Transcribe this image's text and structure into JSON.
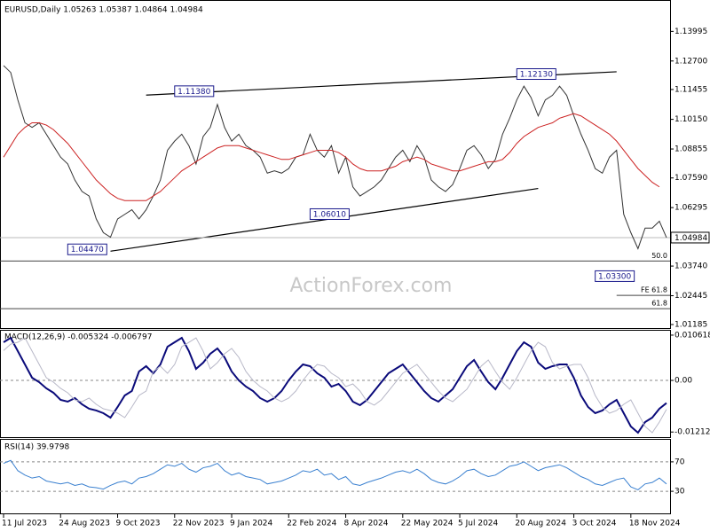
{
  "chart_data": [
    {
      "type": "line",
      "title": "EURUSD,Daily  1.05263 1.05387 1.04864 1.04984",
      "watermark": "ActionForex.com",
      "categories": [
        "11 Jul 2023",
        null,
        null,
        null,
        null,
        null,
        null,
        null,
        "24 Aug 2023",
        null,
        null,
        null,
        null,
        null,
        null,
        null,
        "9 Oct 2023",
        null,
        null,
        null,
        null,
        null,
        null,
        null,
        "22 Nov 2023",
        null,
        null,
        null,
        null,
        null,
        null,
        null,
        "9 Jan 2024",
        null,
        null,
        null,
        null,
        null,
        null,
        null,
        "22 Feb 2024",
        null,
        null,
        null,
        null,
        null,
        null,
        null,
        "8 Apr 2024",
        null,
        null,
        null,
        null,
        null,
        null,
        null,
        "22 May 2024",
        null,
        null,
        null,
        null,
        null,
        null,
        null,
        "5 Jul 2024",
        null,
        null,
        null,
        null,
        null,
        null,
        null,
        "20 Aug 2024",
        null,
        null,
        null,
        null,
        null,
        null,
        null,
        "3 Oct 2024",
        null,
        null,
        null,
        null,
        null,
        null,
        null,
        "18 Nov 2024",
        null,
        null,
        null,
        null,
        null
      ],
      "series": [
        {
          "color": "#333333",
          "values": [
            1.125,
            1.122,
            1.11,
            1.1,
            1.098,
            1.1,
            1.095,
            1.09,
            1.085,
            1.082,
            1.075,
            1.07,
            1.068,
            1.058,
            1.052,
            1.05,
            1.058,
            1.06,
            1.062,
            1.058,
            1.062,
            1.068,
            1.075,
            1.088,
            1.092,
            1.095,
            1.09,
            1.082,
            1.094,
            1.098,
            1.108,
            1.098,
            1.092,
            1.095,
            1.09,
            1.088,
            1.085,
            1.078,
            1.079,
            1.078,
            1.08,
            1.085,
            1.086,
            1.095,
            1.088,
            1.085,
            1.09,
            1.078,
            1.085,
            1.072,
            1.068,
            1.07,
            1.072,
            1.075,
            1.08,
            1.085,
            1.088,
            1.083,
            1.09,
            1.085,
            1.075,
            1.072,
            1.07,
            1.073,
            1.08,
            1.088,
            1.09,
            1.086,
            1.08,
            1.084,
            1.095,
            1.102,
            1.11,
            1.116,
            1.111,
            1.103,
            1.11,
            1.112,
            1.116,
            1.112,
            1.103,
            1.095,
            1.088,
            1.08,
            1.078,
            1.085,
            1.088,
            1.06,
            1.052,
            1.045,
            1.054,
            1.054,
            1.057,
            1.04984
          ]
        },
        {
          "color": "#cc2222",
          "values": [
            1.085,
            1.09,
            1.095,
            1.098,
            1.1,
            1.1,
            1.099,
            1.097,
            1.094,
            1.091,
            1.087,
            1.083,
            1.079,
            1.075,
            1.072,
            1.069,
            1.067,
            1.066,
            1.066,
            1.066,
            1.066,
            1.068,
            1.07,
            1.073,
            1.076,
            1.079,
            1.081,
            1.083,
            1.085,
            1.087,
            1.089,
            1.09,
            1.09,
            1.09,
            1.089,
            1.088,
            1.087,
            1.086,
            1.085,
            1.084,
            1.084,
            1.085,
            1.086,
            1.087,
            1.088,
            1.088,
            1.088,
            1.087,
            1.085,
            1.082,
            1.08,
            1.079,
            1.079,
            1.079,
            1.08,
            1.081,
            1.083,
            1.084,
            1.085,
            1.084,
            1.082,
            1.081,
            1.08,
            1.079,
            1.079,
            1.08,
            1.081,
            1.082,
            1.083,
            1.083,
            1.084,
            1.087,
            1.091,
            1.094,
            1.096,
            1.098,
            1.099,
            1.1,
            1.102,
            1.103,
            1.104,
            1.103,
            1.101,
            1.099,
            1.097,
            1.095,
            1.092,
            1.088,
            1.084,
            1.08,
            1.077,
            1.074,
            1.072,
            null
          ]
        }
      ],
      "ylim": [
        1.0107,
        1.1521
      ],
      "yticks": [
        {
          "value": 1.13995,
          "label": "1.13995"
        },
        {
          "value": 1.127,
          "label": "1.12700"
        },
        {
          "value": 1.11455,
          "label": "1.11455"
        },
        {
          "value": 1.1015,
          "label": "1.10150"
        },
        {
          "value": 1.08855,
          "label": "1.08855"
        },
        {
          "value": 1.0759,
          "label": "1.07590"
        },
        {
          "value": 1.06295,
          "label": "1.06295"
        },
        {
          "value": 1.0374,
          "label": "1.03740"
        },
        {
          "value": 1.02445,
          "label": "1.02445"
        },
        {
          "value": 1.01185,
          "label": "1.01185"
        }
      ],
      "annotations": [
        {
          "index": 24,
          "value": 1.1138,
          "label": "1.11380"
        },
        {
          "index": 43,
          "value": 1.0601,
          "label": "1.06010"
        },
        {
          "index": 9,
          "value": 1.0447,
          "label": "1.04470"
        },
        {
          "index": 72,
          "value": 1.1213,
          "label": "1.12130"
        },
        {
          "index": 83,
          "value": 1.033,
          "label": "1.03300"
        }
      ],
      "levels": [
        {
          "value": 1.0396,
          "label": "50.0",
          "start": 0
        },
        {
          "value": 1.0246,
          "label": "FE 61.8",
          "start": 86
        },
        {
          "value": 1.0188,
          "label": "61.8",
          "start": 0
        }
      ],
      "trendlines": [
        {
          "points": [
            [
              20,
              1.1121
            ],
            [
              86,
              1.1223
            ]
          ]
        },
        {
          "points": [
            [
              15,
              1.0439
            ],
            [
              75,
              1.0713
            ]
          ]
        }
      ]
    },
    {
      "type": "line",
      "title": "MACD(12,26,9) -0.005324 -0.006797",
      "series": [
        {
          "color": "#0a0a7a",
          "values": [
            0.00894,
            0.00998,
            0.00686,
            0.00374,
            0.00062,
            -0.00042,
            -0.00187,
            -0.00291,
            -0.00458,
            -0.00499,
            -0.00416,
            -0.00562,
            -0.00666,
            -0.00707,
            -0.0077,
            -0.00874,
            -0.00624,
            -0.00354,
            -0.0025,
            0.00208,
            0.00333,
            0.00166,
            0.00374,
            0.0079,
            0.00894,
            0.00998,
            0.00686,
            0.0027,
            0.00416,
            0.00624,
            0.00749,
            0.00541,
            0.00208,
            0,
            -0.00146,
            -0.0025,
            -0.00416,
            -0.00499,
            -0.00416,
            -0.0025,
            0,
            0.00208,
            0.00374,
            0.00333,
            0.00166,
            0.00062,
            -0.00146,
            -0.00083,
            -0.0025,
            -0.00499,
            -0.00582,
            -0.00458,
            -0.0025,
            -0.00042,
            0.00166,
            0.0027,
            0.00374,
            0.00166,
            -0.00042,
            -0.0025,
            -0.00416,
            -0.00499,
            -0.00354,
            -0.00208,
            0.00062,
            0.00333,
            0.00478,
            0.00208,
            -0.00042,
            -0.00208,
            0.00062,
            0.00374,
            0.00686,
            0.00894,
            0.0079,
            0.00416,
            0.0027,
            0.00333,
            0.00374,
            0.00374,
            0.00062,
            -0.00354,
            -0.00624,
            -0.0077,
            -0.00707,
            -0.00562,
            -0.00458,
            -0.0077,
            -0.01082,
            -0.01228,
            -0.00978,
            -0.00874,
            -0.00666,
            -0.005324
          ]
        },
        {
          "color": "#b8b8c8",
          "values": [
            0.007,
            0.0085,
            0.00894,
            0.00998,
            0.00686,
            0.00374,
            0.00062,
            -0.00042,
            -0.00187,
            -0.00291,
            -0.00458,
            -0.00499,
            -0.00416,
            -0.00562,
            -0.00666,
            -0.00707,
            -0.0077,
            -0.00874,
            -0.00624,
            -0.00354,
            -0.0025,
            0.00208,
            0.00333,
            0.00166,
            0.00374,
            0.0079,
            0.00894,
            0.00998,
            0.00686,
            0.0027,
            0.00416,
            0.00624,
            0.00749,
            0.00541,
            0.00208,
            0,
            -0.00146,
            -0.0025,
            -0.00416,
            -0.00499,
            -0.00416,
            -0.0025,
            0,
            0.00208,
            0.00374,
            0.00333,
            0.00166,
            0.00062,
            -0.00146,
            -0.00083,
            -0.0025,
            -0.00499,
            -0.00582,
            -0.00458,
            -0.0025,
            -0.00042,
            0.00166,
            0.0027,
            0.00374,
            0.00166,
            -0.00042,
            -0.0025,
            -0.00416,
            -0.00499,
            -0.00354,
            -0.00208,
            0.00062,
            0.00333,
            0.00478,
            0.00208,
            -0.00042,
            -0.00208,
            0.00062,
            0.00374,
            0.00686,
            0.00894,
            0.0079,
            0.00416,
            0.0027,
            0.00333,
            0.00374,
            0.00374,
            0.00062,
            -0.00354,
            -0.00624,
            -0.0077,
            -0.00707,
            -0.00562,
            -0.00458,
            -0.0077,
            -0.01082,
            -0.01228,
            -0.00978,
            -0.006797
          ]
        }
      ],
      "ylim": [
        -0.01332,
        0.01165
      ],
      "yticks": [
        0.010618,
        {
          "value": 0,
          "label": "0.00"
        },
        -0.01212
      ],
      "dashed": [
        1
      ]
    },
    {
      "type": "line",
      "title": "RSI(14) 39.9798",
      "series": [
        {
          "color": "#3a80d0",
          "values": [
            68,
            72,
            58,
            52,
            48,
            50,
            44,
            42,
            40,
            42,
            38,
            40,
            36,
            35,
            33,
            38,
            42,
            44,
            40,
            48,
            50,
            54,
            60,
            66,
            64,
            68,
            60,
            56,
            62,
            64,
            68,
            58,
            52,
            55,
            50,
            48,
            46,
            40,
            42,
            44,
            48,
            52,
            58,
            56,
            60,
            52,
            54,
            46,
            50,
            40,
            38,
            42,
            45,
            48,
            52,
            56,
            58,
            55,
            60,
            54,
            46,
            42,
            40,
            44,
            50,
            58,
            60,
            54,
            50,
            52,
            58,
            64,
            66,
            70,
            64,
            58,
            62,
            64,
            66,
            62,
            56,
            50,
            46,
            40,
            38,
            42,
            46,
            48,
            36,
            32,
            40,
            42,
            48,
            39.9798
          ]
        }
      ],
      "ylim": [
        0,
        100
      ],
      "yticks": [
        70,
        30
      ],
      "dashed": [
        0,
        1
      ]
    }
  ]
}
